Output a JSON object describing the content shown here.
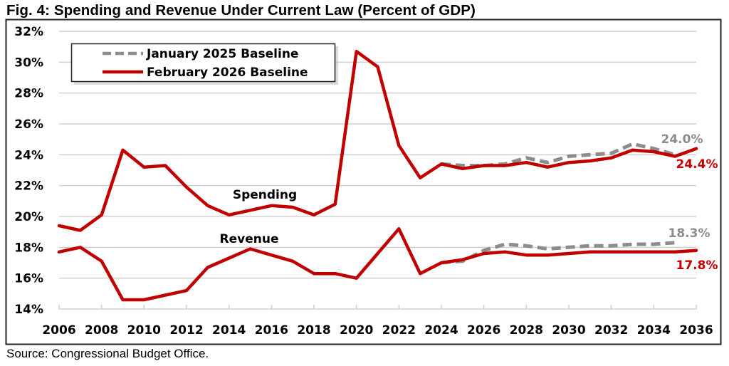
{
  "figure": {
    "title": "Fig. 4: Spending and Revenue Under Current Law (Percent of GDP)",
    "source": "Source: Congressional Budget Office."
  },
  "colors": {
    "feb2026": "#C00000",
    "jan2025": "#8C8C8C",
    "gridline": "#D0D0D0",
    "frame": "#222222"
  },
  "chart_data": {
    "type": "line",
    "title": "Fig. 4: Spending and Revenue Under Current Law (Percent of GDP)",
    "xlabel": "",
    "ylabel": "",
    "xlim": [
      2006,
      2036
    ],
    "ylim": [
      14,
      32
    ],
    "grid": true,
    "legend_position": "top-left",
    "x_tick_labels": [
      "2006",
      "2008",
      "2010",
      "2012",
      "2014",
      "2016",
      "2018",
      "2020",
      "2022",
      "2024",
      "2026",
      "2028",
      "2030",
      "2032",
      "2034",
      "2036"
    ],
    "y_tick_labels": [
      "14%",
      "16%",
      "18%",
      "20%",
      "22%",
      "24%",
      "26%",
      "28%",
      "30%",
      "32%"
    ],
    "y_ticks": [
      14,
      16,
      18,
      20,
      22,
      24,
      26,
      28,
      30,
      32
    ],
    "legend": [
      {
        "name": "January 2025 Baseline",
        "style": "dashed",
        "color": "#8C8C8C"
      },
      {
        "name": "February 2026 Baseline",
        "style": "solid",
        "color": "#C00000"
      }
    ],
    "annotations": [
      {
        "text": "Spending",
        "refers_to": "spending"
      },
      {
        "text": "Revenue",
        "refers_to": "revenue"
      },
      {
        "text": "24.0%",
        "series": "Spending - January 2025 Baseline",
        "x": 2035,
        "color": "#8C8C8C"
      },
      {
        "text": "24.4%",
        "series": "Spending - February 2026 Baseline",
        "x": 2036,
        "color": "#C00000"
      },
      {
        "text": "18.3%",
        "series": "Revenue - January 2025 Baseline",
        "x": 2035,
        "color": "#8C8C8C"
      },
      {
        "text": "17.8%",
        "series": "Revenue - February 2026 Baseline",
        "x": 2036,
        "color": "#C00000"
      }
    ],
    "series": [
      {
        "name": "Spending - January 2025 Baseline",
        "baseline": "January 2025 Baseline",
        "style": "dashed",
        "color": "#8C8C8C",
        "x": [
          2024,
          2025,
          2026,
          2027,
          2028,
          2029,
          2030,
          2031,
          2032,
          2033,
          2034,
          2035
        ],
        "values": [
          23.4,
          23.3,
          23.3,
          23.4,
          23.8,
          23.5,
          23.9,
          24.0,
          24.1,
          24.7,
          24.4,
          24.0
        ]
      },
      {
        "name": "Revenue - January 2025 Baseline",
        "baseline": "January 2025 Baseline",
        "style": "dashed",
        "color": "#8C8C8C",
        "x": [
          2024,
          2025,
          2026,
          2027,
          2028,
          2029,
          2030,
          2031,
          2032,
          2033,
          2034,
          2035
        ],
        "values": [
          17.0,
          17.1,
          17.8,
          18.2,
          18.1,
          17.9,
          18.0,
          18.1,
          18.1,
          18.2,
          18.2,
          18.3
        ]
      },
      {
        "name": "Spending - February 2026 Baseline",
        "baseline": "February 2026 Baseline",
        "style": "solid",
        "color": "#C00000",
        "x": [
          2006,
          2007,
          2008,
          2009,
          2010,
          2011,
          2012,
          2013,
          2014,
          2015,
          2016,
          2017,
          2018,
          2019,
          2020,
          2021,
          2022,
          2023,
          2024,
          2025,
          2026,
          2027,
          2028,
          2029,
          2030,
          2031,
          2032,
          2033,
          2034,
          2035,
          2036
        ],
        "values": [
          19.4,
          19.1,
          20.1,
          24.3,
          23.2,
          23.3,
          21.9,
          20.7,
          20.1,
          20.4,
          20.7,
          20.6,
          20.1,
          20.8,
          30.7,
          29.7,
          24.6,
          22.5,
          23.4,
          23.1,
          23.3,
          23.3,
          23.5,
          23.2,
          23.5,
          23.6,
          23.8,
          24.3,
          24.2,
          23.9,
          24.4
        ]
      },
      {
        "name": "Revenue - February 2026 Baseline",
        "baseline": "February 2026 Baseline",
        "style": "solid",
        "color": "#C00000",
        "x": [
          2006,
          2007,
          2008,
          2009,
          2010,
          2011,
          2012,
          2013,
          2014,
          2015,
          2016,
          2017,
          2018,
          2019,
          2020,
          2021,
          2022,
          2023,
          2024,
          2025,
          2026,
          2027,
          2028,
          2029,
          2030,
          2031,
          2032,
          2033,
          2034,
          2035,
          2036
        ],
        "values": [
          17.7,
          18.0,
          17.1,
          14.6,
          14.6,
          14.9,
          15.2,
          16.7,
          17.3,
          17.9,
          17.5,
          17.1,
          16.3,
          16.3,
          16.0,
          17.6,
          19.2,
          16.3,
          17.0,
          17.2,
          17.6,
          17.7,
          17.5,
          17.5,
          17.6,
          17.7,
          17.7,
          17.7,
          17.7,
          17.7,
          17.8
        ]
      }
    ]
  }
}
